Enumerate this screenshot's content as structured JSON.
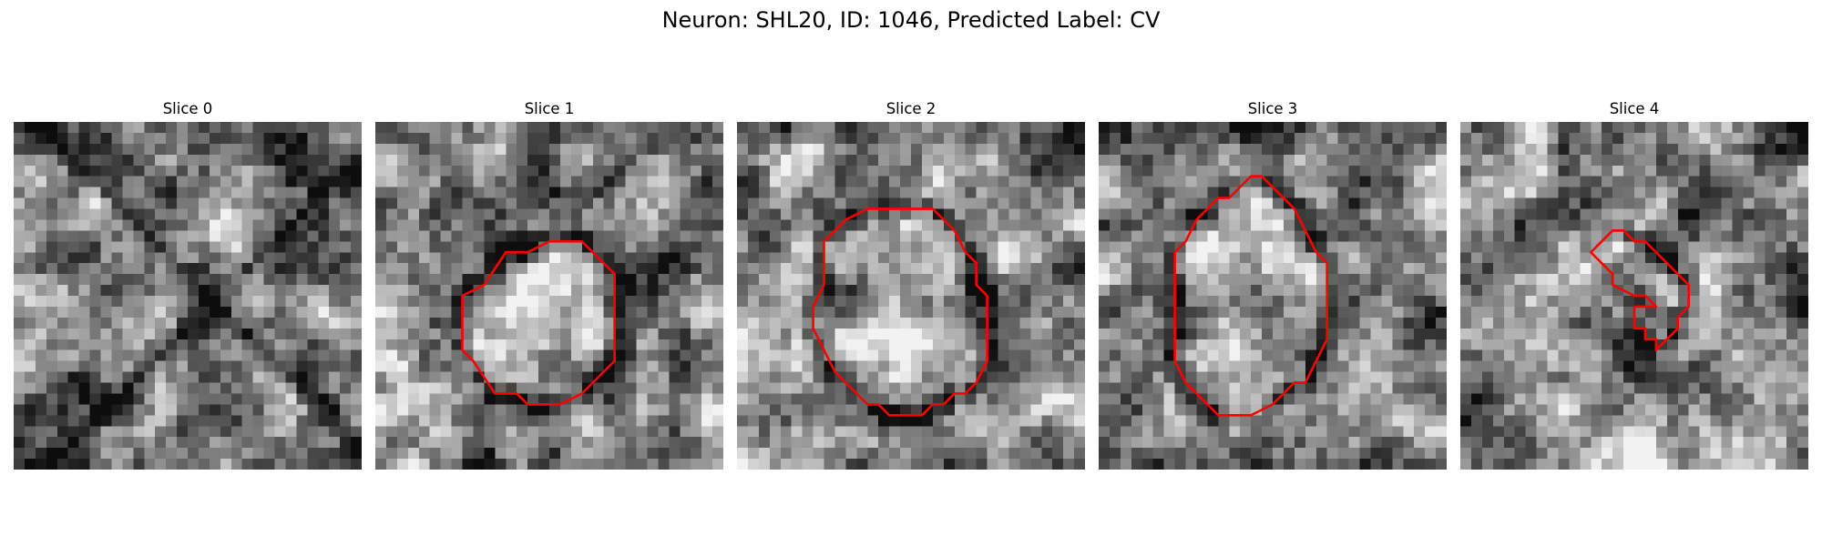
{
  "figure": {
    "title": "Neuron: SHL20, ID: 1046, Predicted Label: CV",
    "colormap": "grayscale",
    "contour_color": "#ff0000",
    "grid_size": 32
  },
  "panels": [
    {
      "title": "Slice 0",
      "seed": 11,
      "has_contour": false,
      "dark_features": "diagonal dark membranes crossing the field",
      "contour": []
    },
    {
      "title": "Slice 1",
      "seed": 23,
      "has_contour": true,
      "contour": [
        [
          10,
          15
        ],
        [
          12,
          12
        ],
        [
          14,
          12
        ],
        [
          16,
          11
        ],
        [
          19,
          11
        ],
        [
          22,
          14
        ],
        [
          22,
          22
        ],
        [
          20,
          24
        ],
        [
          19,
          25
        ],
        [
          17,
          26
        ],
        [
          14,
          26
        ],
        [
          13,
          25
        ],
        [
          11,
          25
        ],
        [
          9,
          22
        ],
        [
          8,
          21
        ],
        [
          8,
          16
        ]
      ]
    },
    {
      "title": "Slice 2",
      "seed": 37,
      "has_contour": true,
      "contour": [
        [
          8,
          11
        ],
        [
          10,
          9
        ],
        [
          12,
          8
        ],
        [
          18,
          8
        ],
        [
          20,
          10
        ],
        [
          21,
          12
        ],
        [
          22,
          13
        ],
        [
          22,
          15
        ],
        [
          23,
          16
        ],
        [
          23,
          22
        ],
        [
          22,
          24
        ],
        [
          21,
          25
        ],
        [
          20,
          25
        ],
        [
          19,
          26
        ],
        [
          18,
          26
        ],
        [
          17,
          27
        ],
        [
          14,
          27
        ],
        [
          13,
          26
        ],
        [
          12,
          26
        ],
        [
          11,
          25
        ],
        [
          9,
          23
        ],
        [
          8,
          21
        ],
        [
          7,
          19
        ],
        [
          7,
          17
        ],
        [
          8,
          15
        ],
        [
          8,
          12
        ]
      ]
    },
    {
      "title": "Slice 3",
      "seed": 53,
      "has_contour": true,
      "contour": [
        [
          8,
          11
        ],
        [
          9,
          9
        ],
        [
          11,
          7
        ],
        [
          12,
          7
        ],
        [
          13,
          6
        ],
        [
          14,
          5
        ],
        [
          15,
          5
        ],
        [
          16,
          6
        ],
        [
          17,
          7
        ],
        [
          18,
          8
        ],
        [
          19,
          10
        ],
        [
          20,
          12
        ],
        [
          21,
          13
        ],
        [
          21,
          20
        ],
        [
          20,
          22
        ],
        [
          19,
          24
        ],
        [
          18,
          24
        ],
        [
          17,
          25
        ],
        [
          16,
          26
        ],
        [
          14,
          27
        ],
        [
          11,
          27
        ],
        [
          10,
          26
        ],
        [
          9,
          25
        ],
        [
          8,
          24
        ],
        [
          7,
          22
        ],
        [
          7,
          12
        ]
      ]
    },
    {
      "title": "Slice 4",
      "seed": 71,
      "has_contour": true,
      "contour": [
        [
          13,
          11
        ],
        [
          14,
          10
        ],
        [
          15,
          10
        ],
        [
          16,
          11
        ],
        [
          17,
          11
        ],
        [
          18,
          12
        ],
        [
          19,
          13
        ],
        [
          20,
          14
        ],
        [
          21,
          15
        ],
        [
          21,
          17
        ],
        [
          20,
          18
        ],
        [
          20,
          19
        ],
        [
          19,
          20
        ],
        [
          18,
          21
        ],
        [
          18,
          20
        ],
        [
          17,
          20
        ],
        [
          17,
          19
        ],
        [
          16,
          19
        ],
        [
          16,
          18
        ],
        [
          16,
          17
        ],
        [
          17,
          17
        ],
        [
          18,
          17
        ],
        [
          17,
          16
        ],
        [
          16,
          16
        ],
        [
          14,
          15
        ],
        [
          14,
          14
        ],
        [
          13,
          13
        ],
        [
          12,
          12
        ]
      ]
    }
  ]
}
